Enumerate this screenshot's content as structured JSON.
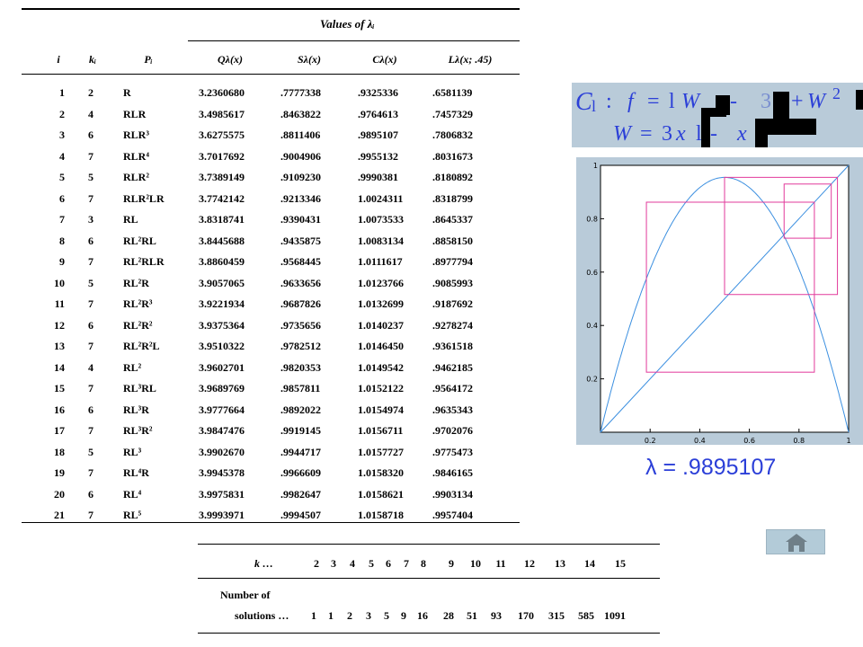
{
  "table": {
    "group_header": "Values of λᵢ",
    "columns": [
      "i",
      "kᵢ",
      "Pᵢ",
      "Qλ(x)",
      "Sλ(x)",
      "Cλ(x)",
      "Lλ(x; .45)"
    ],
    "rows": [
      [
        "1",
        "2",
        "R",
        "3.2360680",
        ".7777338",
        ".9325336",
        ".6581139"
      ],
      [
        "2",
        "4",
        "RLR",
        "3.4985617",
        ".8463822",
        ".9764613",
        ".7457329"
      ],
      [
        "3",
        "6",
        "RLR³",
        "3.6275575",
        ".8811406",
        ".9895107",
        ".7806832"
      ],
      [
        "4",
        "7",
        "RLR⁴",
        "3.7017692",
        ".9004906",
        ".9955132",
        ".8031673"
      ],
      [
        "5",
        "5",
        "RLR²",
        "3.7389149",
        ".9109230",
        ".9990381",
        ".8180892"
      ],
      [
        "6",
        "7",
        "RLR²LR",
        "3.7742142",
        ".9213346",
        "1.0024311",
        ".8318799"
      ],
      [
        "7",
        "3",
        "RL",
        "3.8318741",
        ".9390431",
        "1.0073533",
        ".8645337"
      ],
      [
        "8",
        "6",
        "RL²RL",
        "3.8445688",
        ".9435875",
        "1.0083134",
        ".8858150"
      ],
      [
        "9",
        "7",
        "RL²RLR",
        "3.8860459",
        ".9568445",
        "1.0111617",
        ".8977794"
      ],
      [
        "10",
        "5",
        "RL²R",
        "3.9057065",
        ".9633656",
        "1.0123766",
        ".9085993"
      ],
      [
        "11",
        "7",
        "RL²R³",
        "3.9221934",
        ".9687826",
        "1.0132699",
        ".9187692"
      ],
      [
        "12",
        "6",
        "RL²R²",
        "3.9375364",
        ".9735656",
        "1.0140237",
        ".9278274"
      ],
      [
        "13",
        "7",
        "RL²R²L",
        "3.9510322",
        ".9782512",
        "1.0146450",
        ".9361518"
      ],
      [
        "14",
        "4",
        "RL²",
        "3.9602701",
        ".9820353",
        "1.0149542",
        ".9462185"
      ],
      [
        "15",
        "7",
        "RL³RL",
        "3.9689769",
        ".9857811",
        "1.0152122",
        ".9564172"
      ],
      [
        "16",
        "6",
        "RL³R",
        "3.9777664",
        ".9892022",
        "1.0154974",
        ".9635343"
      ],
      [
        "17",
        "7",
        "RL³R²",
        "3.9847476",
        ".9919145",
        "1.0156711",
        ".9702076"
      ],
      [
        "18",
        "5",
        "RL³",
        "3.9902670",
        ".9944717",
        "1.0157727",
        ".9775473"
      ],
      [
        "19",
        "7",
        "RL⁴R",
        "3.9945378",
        ".9966609",
        "1.0158320",
        ".9846165"
      ],
      [
        "20",
        "6",
        "RL⁴",
        "3.9975831",
        ".9982647",
        "1.0158621",
        ".9903134"
      ],
      [
        "21",
        "7",
        "RL⁵",
        "3.9993971",
        ".9994507",
        "1.0158718",
        ".9957404"
      ]
    ]
  },
  "solutions_table": {
    "k_label": "k …",
    "k_values": [
      "2",
      "3",
      "4",
      "5",
      "6",
      "7",
      "8",
      "9",
      "10",
      "11",
      "12",
      "13",
      "14",
      "15"
    ],
    "count_label_line1": "Number of",
    "count_label_line2": "solutions …",
    "counts": [
      "1",
      "1",
      "2",
      "3",
      "5",
      "9",
      "16",
      "28",
      "51",
      "93",
      "170",
      "315",
      "585",
      "1091"
    ]
  },
  "formula": {
    "line1_parts": [
      "C",
      "l",
      ":",
      "f",
      "=",
      "l",
      "W",
      "-",
      "3",
      "+",
      "W",
      "2"
    ],
    "line2_parts": [
      "W",
      "=",
      "3",
      "x",
      "l",
      "-",
      "x"
    ]
  },
  "plot": {
    "x_ticks": [
      "0.2",
      "0.4",
      "0.6",
      "0.8",
      "1"
    ],
    "y_ticks": [
      "1",
      "0.8",
      "0.6",
      "0.4",
      "0.2"
    ],
    "colors": {
      "curve": "#3b8fe0",
      "cycle": "#e23a9b",
      "frame": "#000000",
      "panel": "#b9cbd9"
    }
  },
  "lambda_label": "λ = .9895107",
  "home_button": {
    "icon": "home-icon"
  }
}
